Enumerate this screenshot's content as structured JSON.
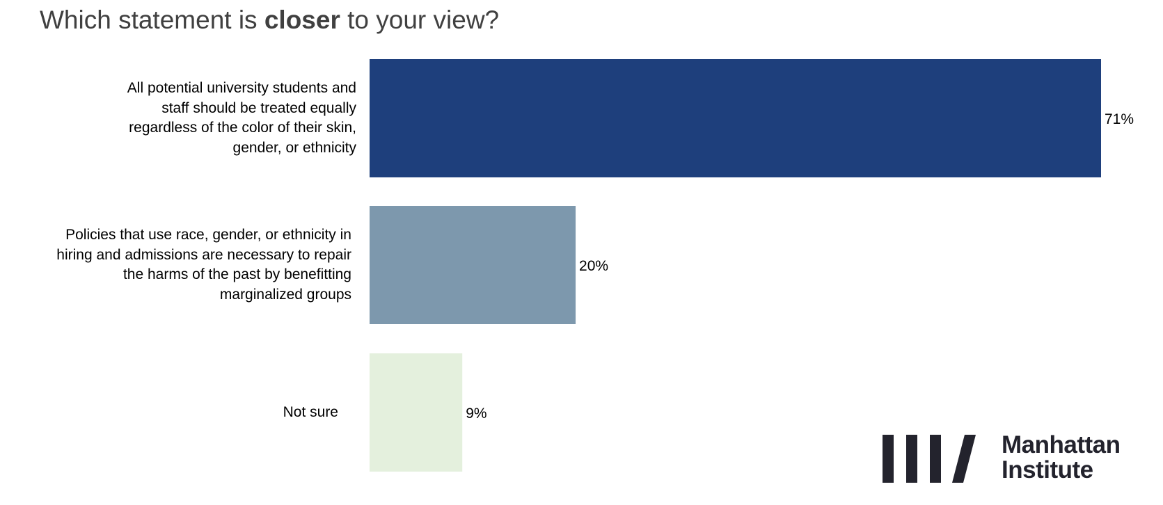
{
  "title": {
    "prefix": "Which statement is ",
    "emphasis": "closer",
    "suffix": " to your view?"
  },
  "chart_data": {
    "type": "bar",
    "orientation": "horizontal",
    "categories": [
      [
        "All potential university students and",
        "staff should be treated equally",
        "regardless of the color of their skin,",
        "gender, or ethnicity"
      ],
      [
        "Policies that use race, gender, or ethnicity in",
        "hiring and admissions are necessary to repair",
        "the harms of the past by benefitting",
        "marginalized groups"
      ],
      [
        "Not sure"
      ]
    ],
    "values": [
      71,
      20,
      9
    ],
    "data_labels": [
      "71%",
      "20%",
      "9%"
    ],
    "colors": [
      "#1e3f7c",
      "#7d98ad",
      "#e4f0dd"
    ],
    "xlim": [
      0,
      71
    ],
    "grid": false,
    "legend": "none"
  },
  "logo": {
    "line1": "Manhattan",
    "line2": "Institute",
    "color": "#23232d"
  }
}
